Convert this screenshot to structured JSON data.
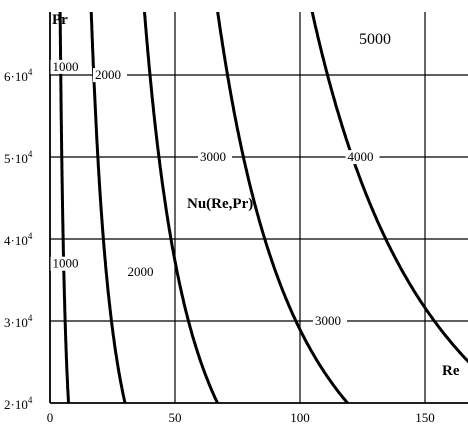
{
  "chart_data": {
    "type": "line",
    "title": "",
    "xlabel": "Re",
    "ylabel": "Pr",
    "function_label": "Nu(Re,Pr)",
    "level_label_top": "5000",
    "xlim": [
      0,
      165
    ],
    "ylim": [
      20000,
      68000
    ],
    "grid": true,
    "x_ticks": [
      {
        "value": 0,
        "label": "0"
      },
      {
        "value": 50,
        "label": "50"
      },
      {
        "value": 100,
        "label": "100"
      },
      {
        "value": 150,
        "label": "150"
      }
    ],
    "y_ticks": [
      {
        "value": 20000,
        "mantissa": "2·10",
        "exp": "4"
      },
      {
        "value": 30000,
        "mantissa": "3·10",
        "exp": "4"
      },
      {
        "value": 40000,
        "mantissa": "4·10",
        "exp": "4"
      },
      {
        "value": 50000,
        "mantissa": "5·10",
        "exp": "4"
      },
      {
        "value": 60000,
        "mantissa": "6·10",
        "exp": "4"
      }
    ],
    "series": [
      {
        "level": 1000,
        "x": [
          7.4,
          6.5,
          5.7,
          5.0,
          4.3
        ],
        "y": [
          20000,
          30000,
          40000,
          50000,
          60000
        ]
      },
      {
        "level": 2000,
        "x": [
          30,
          26,
          22.7,
          19.9,
          17.5
        ],
        "y": [
          20000,
          30000,
          40000,
          50000,
          60000
        ]
      },
      {
        "level": 3000,
        "x": [
          67,
          58,
          51,
          45,
          40
        ],
        "y": [
          20000,
          30000,
          40000,
          50000,
          60000
        ]
      },
      {
        "level": 4000,
        "x": [
          119,
          103,
          90.5,
          80,
          71
        ],
        "y": [
          20000,
          30000,
          40000,
          50000,
          60000
        ]
      },
      {
        "level": 5000,
        "x": [
          186,
          161,
          141.5,
          125,
          111
        ],
        "y": [
          20000,
          30000,
          40000,
          50000,
          60000
        ]
      }
    ],
    "contour_labels": [
      {
        "text": "1000",
        "x": 1,
        "y": 60500
      },
      {
        "text": "1000",
        "x": 1,
        "y": 36500
      },
      {
        "text": "2000",
        "x": 18,
        "y": 59500
      },
      {
        "text": "2000",
        "x": 31,
        "y": 35500
      },
      {
        "text": "3000",
        "x": 60,
        "y": 49500
      },
      {
        "text": "3000",
        "x": 106,
        "y": 29500
      },
      {
        "text": "4000",
        "x": 119,
        "y": 49500
      }
    ]
  }
}
